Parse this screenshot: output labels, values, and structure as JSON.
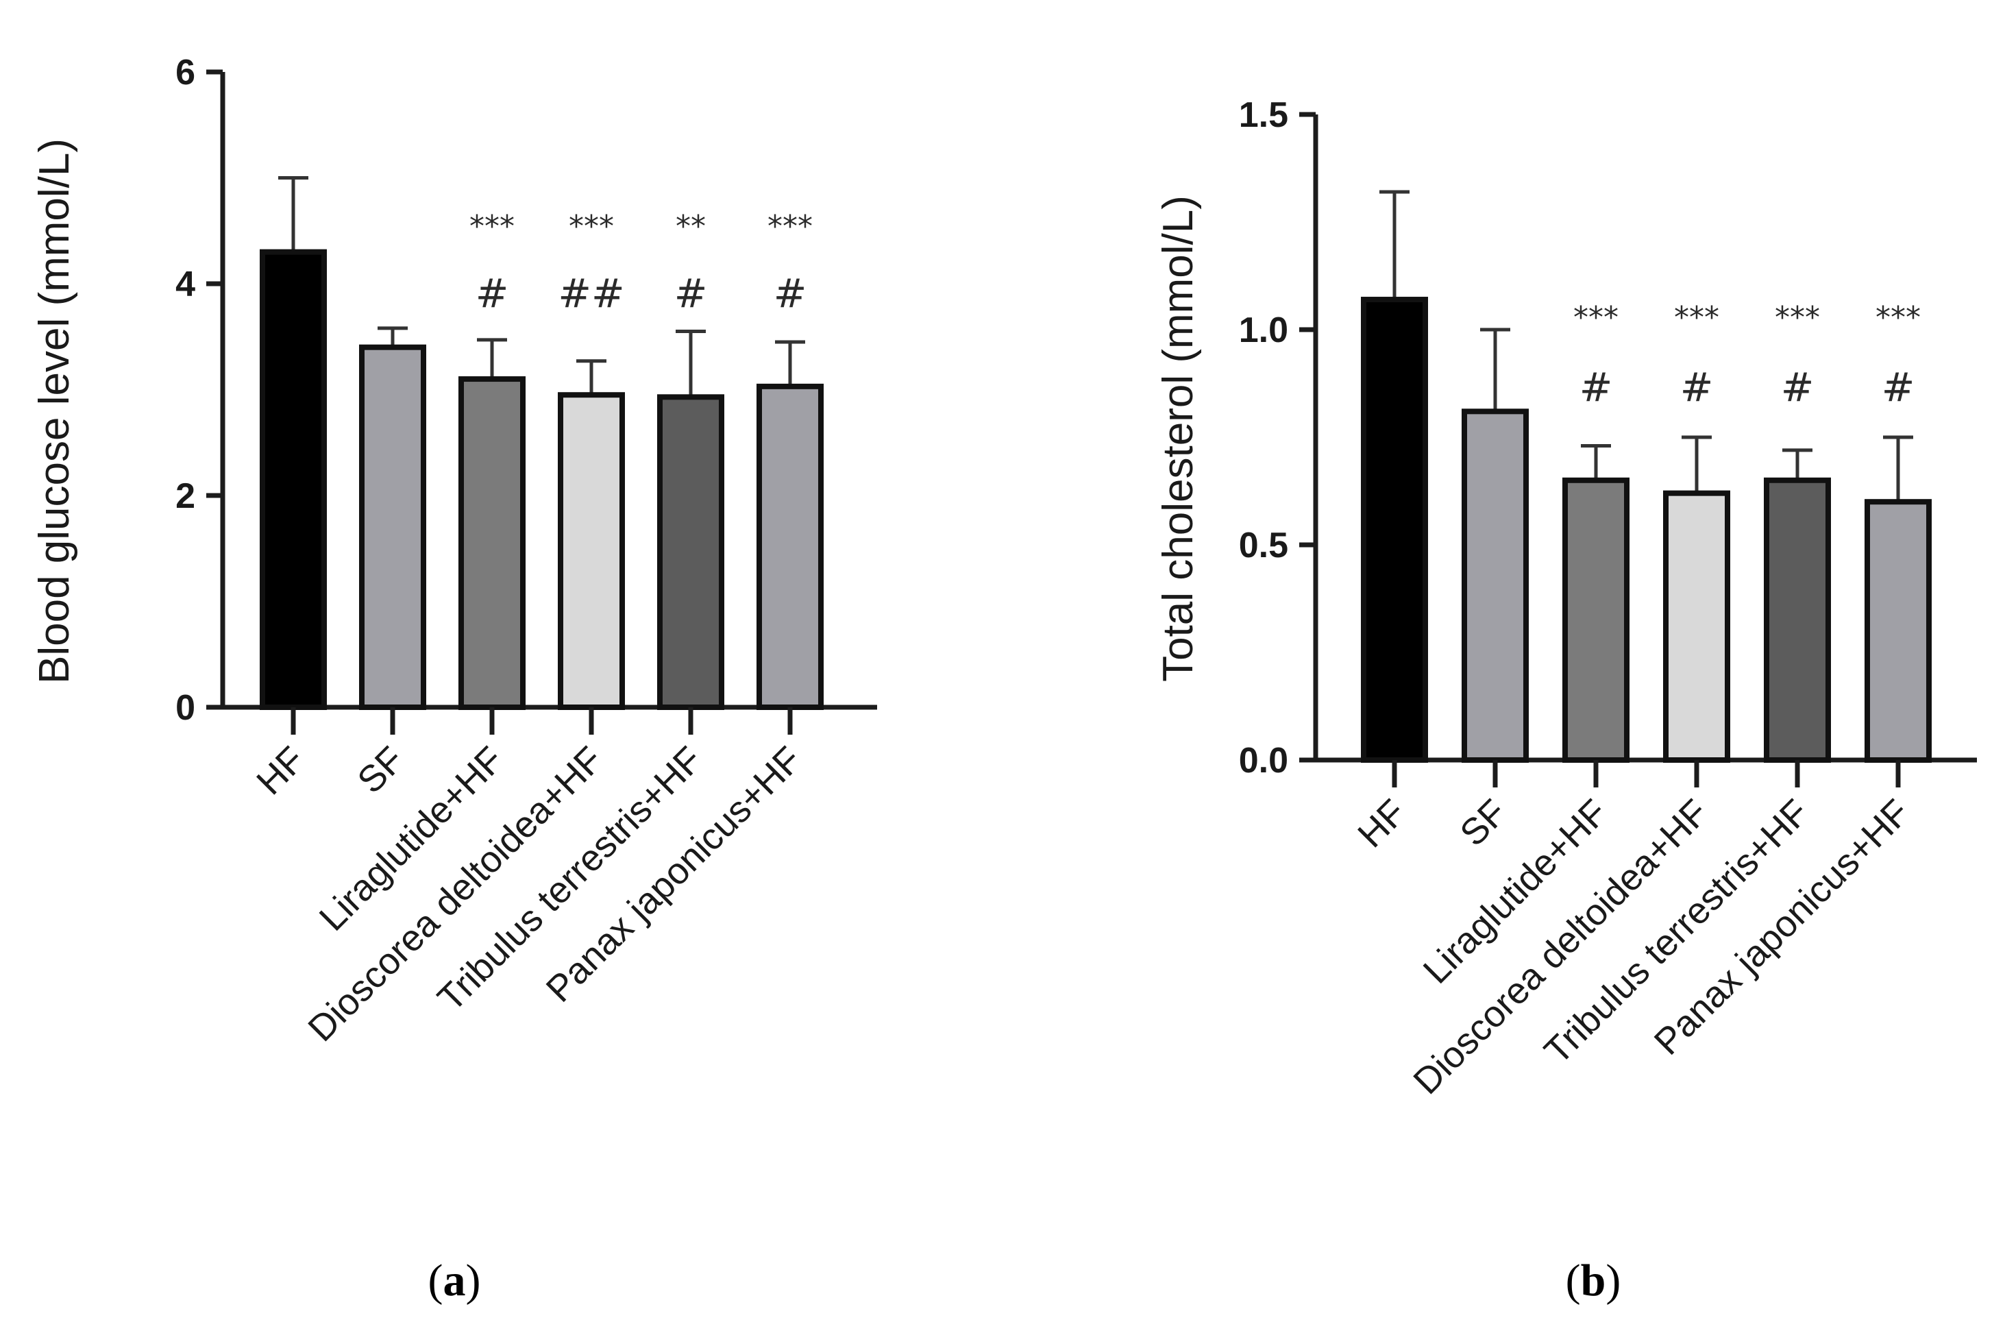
{
  "chart_data": [
    {
      "type": "bar",
      "panel_label_prefix": "(",
      "panel_letter": "a",
      "panel_label_suffix": ")",
      "categories": [
        "HF",
        "SF",
        "Liraglutide+HF",
        "Dioscorea deltoidea+HF",
        "Tribulus terrestris+HF",
        "Panax japonicus+HF"
      ],
      "values": [
        4.3,
        3.4,
        3.1,
        2.95,
        2.93,
        3.03
      ],
      "errors": [
        0.7,
        0.18,
        0.37,
        0.32,
        0.62,
        0.42
      ],
      "fills": [
        "#000000",
        "#a0a0a6",
        "#7b7b7b",
        "#d9d9d9",
        "#5c5c5c",
        "#a0a0a6"
      ],
      "significance_stars": [
        "",
        "",
        "***",
        "***",
        "**",
        "***"
      ],
      "significance_hash": [
        "",
        "",
        "#",
        "##",
        "#",
        "#"
      ],
      "ylabel": "Blood glucose level (mmol/L)",
      "xlabel": "",
      "ylim": [
        0,
        6
      ],
      "yticks": [
        0,
        2,
        4,
        6
      ],
      "ytick_labels": [
        "0",
        "2",
        "4",
        "6"
      ]
    },
    {
      "type": "bar",
      "panel_label_prefix": "(",
      "panel_letter": "b",
      "panel_label_suffix": ")",
      "categories": [
        "HF",
        "SF",
        "Liraglutide+HF",
        "Dioscorea deltoidea+HF",
        "Tribulus terrestris+HF",
        "Panax japonicus+HF"
      ],
      "values": [
        1.07,
        0.81,
        0.65,
        0.62,
        0.65,
        0.6
      ],
      "errors": [
        0.25,
        0.19,
        0.08,
        0.13,
        0.07,
        0.15
      ],
      "fills": [
        "#000000",
        "#a0a0a6",
        "#7b7b7b",
        "#d9d9d9",
        "#5c5c5c",
        "#a0a0a6"
      ],
      "significance_stars": [
        "",
        "",
        "***",
        "***",
        "***",
        "***"
      ],
      "significance_hash": [
        "",
        "",
        "#",
        "#",
        "#",
        "#"
      ],
      "ylabel": "Total cholesterol (mmol/L)",
      "xlabel": "",
      "ylim": [
        0,
        1.5
      ],
      "yticks": [
        0,
        0.5,
        1.0,
        1.5
      ],
      "ytick_labels": [
        "0.0",
        "0.5",
        "1.0",
        "1.5"
      ]
    }
  ]
}
